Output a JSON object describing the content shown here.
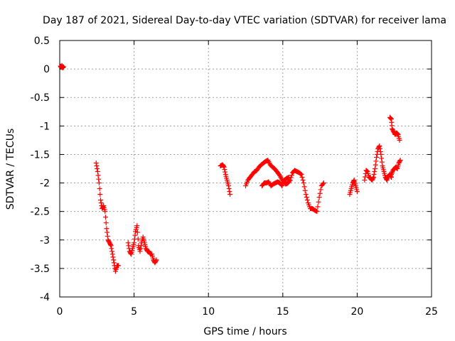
{
  "chart_data": {
    "type": "scatter",
    "title": "Day 187 of 2021, Sidereal Day-to-day VTEC variation (SDTVAR) for receiver lama",
    "xlabel": "GPS time / hours",
    "ylabel": "SDTVAR / TECUs",
    "xlim": [
      0,
      25
    ],
    "ylim": [
      -4,
      0.5
    ],
    "grid": true,
    "marker": "plus",
    "series_color": "#ff0000",
    "xticks": [
      0,
      5,
      10,
      15,
      20,
      25
    ],
    "xtick_labels": [
      "0",
      "5",
      "10",
      "15",
      "20",
      "25"
    ],
    "yticks": [
      0.5,
      0,
      -0.5,
      -1,
      -1.5,
      -2,
      -2.5,
      -3,
      -3.5,
      -4
    ],
    "ytick_labels": [
      "0.5",
      "0",
      "-0.5",
      "-1",
      "-1.5",
      "-2",
      "-2.5",
      "-3",
      "-3.5",
      "-4"
    ],
    "segments": [
      {
        "name": "seg1",
        "points": [
          [
            0.05,
            0.05
          ],
          [
            0.1,
            0.03
          ],
          [
            0.15,
            0.06
          ],
          [
            0.2,
            0.02
          ],
          [
            0.25,
            0.04
          ]
        ]
      },
      {
        "name": "seg2",
        "points": [
          [
            2.45,
            -1.65
          ],
          [
            2.55,
            -1.8
          ],
          [
            2.65,
            -2.0
          ],
          [
            2.75,
            -2.3
          ],
          [
            2.85,
            -2.45
          ],
          [
            2.95,
            -2.4
          ],
          [
            3.05,
            -2.5
          ],
          [
            3.15,
            -2.8
          ],
          [
            3.25,
            -3.0
          ],
          [
            3.35,
            -3.05
          ],
          [
            3.45,
            -3.1
          ],
          [
            3.55,
            -3.25
          ],
          [
            3.65,
            -3.4
          ],
          [
            3.75,
            -3.55
          ],
          [
            3.85,
            -3.45
          ],
          [
            3.95,
            -3.45
          ]
        ]
      },
      {
        "name": "seg3",
        "points": [
          [
            4.6,
            -3.05
          ],
          [
            4.7,
            -3.2
          ],
          [
            4.8,
            -3.25
          ],
          [
            4.9,
            -3.15
          ],
          [
            5.0,
            -3.05
          ],
          [
            5.1,
            -2.85
          ],
          [
            5.2,
            -2.75
          ],
          [
            5.3,
            -3.1
          ],
          [
            5.4,
            -3.2
          ],
          [
            5.5,
            -3.05
          ],
          [
            5.6,
            -2.95
          ],
          [
            5.7,
            -3.05
          ],
          [
            5.8,
            -3.15
          ],
          [
            5.9,
            -3.2
          ],
          [
            6.0,
            -3.2
          ],
          [
            6.1,
            -3.25
          ],
          [
            6.2,
            -3.25
          ],
          [
            6.3,
            -3.35
          ],
          [
            6.4,
            -3.4
          ],
          [
            6.5,
            -3.35
          ]
        ]
      },
      {
        "name": "seg4",
        "points": [
          [
            10.8,
            -1.7
          ],
          [
            10.95,
            -1.68
          ],
          [
            11.05,
            -1.72
          ],
          [
            11.15,
            -1.85
          ],
          [
            11.25,
            -1.95
          ],
          [
            11.35,
            -2.05
          ],
          [
            11.45,
            -2.2
          ]
        ]
      },
      {
        "name": "seg5",
        "points": [
          [
            12.5,
            -2.05
          ],
          [
            12.65,
            -1.95
          ],
          [
            12.8,
            -1.9
          ],
          [
            12.95,
            -1.85
          ],
          [
            13.1,
            -1.8
          ],
          [
            13.25,
            -1.78
          ],
          [
            13.4,
            -1.72
          ],
          [
            13.55,
            -1.68
          ],
          [
            13.7,
            -1.65
          ],
          [
            13.85,
            -1.62
          ],
          [
            14.0,
            -1.6
          ],
          [
            14.15,
            -1.68
          ],
          [
            14.3,
            -1.72
          ],
          [
            14.45,
            -1.75
          ],
          [
            14.6,
            -1.8
          ],
          [
            14.75,
            -1.85
          ],
          [
            14.9,
            -1.92
          ],
          [
            15.05,
            -1.98
          ],
          [
            15.2,
            -2.02
          ],
          [
            15.35,
            -2.0
          ],
          [
            15.5,
            -1.95
          ],
          [
            15.65,
            -1.82
          ],
          [
            15.8,
            -1.78
          ],
          [
            15.95,
            -1.8
          ],
          [
            16.1,
            -1.82
          ],
          [
            16.25,
            -1.85
          ],
          [
            16.4,
            -2.0
          ],
          [
            16.55,
            -2.2
          ],
          [
            16.7,
            -2.35
          ],
          [
            16.85,
            -2.45
          ],
          [
            17.0,
            -2.45
          ],
          [
            17.15,
            -2.48
          ],
          [
            17.3,
            -2.5
          ],
          [
            17.45,
            -2.25
          ],
          [
            17.6,
            -2.05
          ],
          [
            17.75,
            -2.0
          ]
        ]
      },
      {
        "name": "seg6",
        "points": [
          [
            13.6,
            -2.05
          ],
          [
            13.75,
            -2.0
          ],
          [
            13.9,
            -2.0
          ],
          [
            14.05,
            -1.98
          ],
          [
            14.2,
            -2.05
          ],
          [
            14.35,
            -2.02
          ],
          [
            14.5,
            -2.0
          ],
          [
            14.65,
            -1.98
          ],
          [
            14.8,
            -2.0
          ],
          [
            14.95,
            -2.05
          ],
          [
            15.1,
            -1.95
          ],
          [
            15.25,
            -1.92
          ],
          [
            15.4,
            -1.9
          ]
        ]
      },
      {
        "name": "seg7",
        "points": [
          [
            19.5,
            -2.2
          ],
          [
            19.6,
            -2.1
          ],
          [
            19.7,
            -2.0
          ],
          [
            19.8,
            -1.95
          ],
          [
            19.9,
            -2.05
          ],
          [
            20.0,
            -2.15
          ]
        ]
      },
      {
        "name": "seg8",
        "points": [
          [
            20.5,
            -1.95
          ],
          [
            20.6,
            -1.78
          ],
          [
            20.7,
            -1.8
          ],
          [
            20.8,
            -1.9
          ],
          [
            20.9,
            -1.92
          ],
          [
            21.0,
            -1.95
          ],
          [
            21.1,
            -1.9
          ],
          [
            21.2,
            -1.75
          ],
          [
            21.3,
            -1.55
          ],
          [
            21.4,
            -1.4
          ],
          [
            21.5,
            -1.35
          ],
          [
            21.6,
            -1.5
          ],
          [
            21.7,
            -1.7
          ],
          [
            21.8,
            -1.8
          ],
          [
            21.9,
            -1.9
          ],
          [
            22.0,
            -1.95
          ],
          [
            22.1,
            -1.88
          ],
          [
            22.2,
            -1.85
          ],
          [
            22.3,
            -1.9
          ]
        ]
      },
      {
        "name": "seg9",
        "points": [
          [
            22.2,
            -0.85
          ],
          [
            22.3,
            -0.88
          ],
          [
            22.35,
            -1.05
          ],
          [
            22.45,
            -1.1
          ],
          [
            22.55,
            -1.15
          ],
          [
            22.65,
            -1.12
          ],
          [
            22.75,
            -1.15
          ],
          [
            22.85,
            -1.25
          ]
        ]
      },
      {
        "name": "seg10",
        "points": [
          [
            22.3,
            -1.85
          ],
          [
            22.4,
            -1.78
          ],
          [
            22.5,
            -1.75
          ],
          [
            22.6,
            -1.72
          ],
          [
            22.7,
            -1.75
          ],
          [
            22.8,
            -1.65
          ],
          [
            22.9,
            -1.6
          ]
        ]
      }
    ]
  }
}
